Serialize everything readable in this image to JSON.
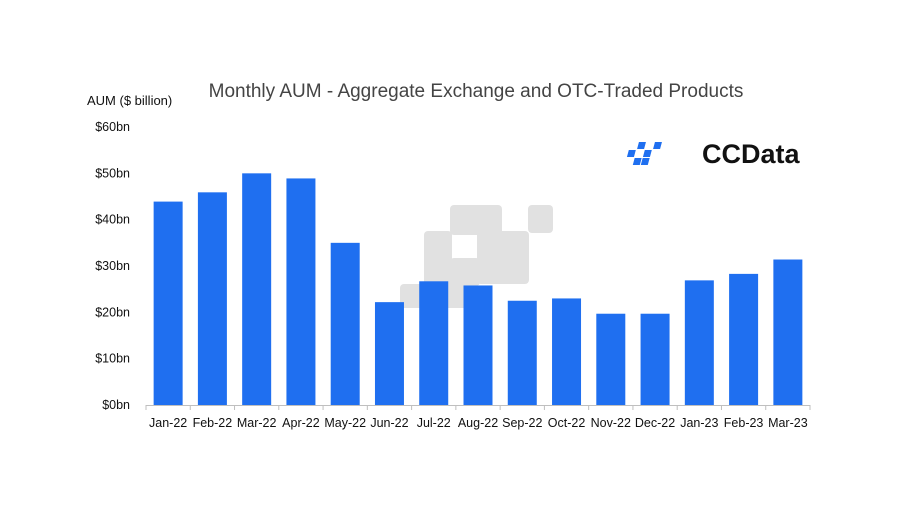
{
  "chart_data": {
    "type": "bar",
    "title": "Monthly AUM - Aggregate Exchange and OTC-Traded Products",
    "ylabel": "AUM ($ billion)",
    "xlabel": "",
    "categories": [
      "Jan-22",
      "Feb-22",
      "Mar-22",
      "Apr-22",
      "May-22",
      "Jun-22",
      "Jul-22",
      "Aug-22",
      "Sep-22",
      "Oct-22",
      "Nov-22",
      "Dec-22",
      "Jan-23",
      "Feb-23",
      "Mar-23"
    ],
    "values": [
      43.9,
      45.9,
      50.0,
      48.9,
      35.0,
      22.2,
      26.7,
      25.8,
      22.5,
      23.0,
      19.7,
      19.7,
      26.9,
      28.3,
      31.4
    ],
    "ylim": [
      0,
      60
    ],
    "yticks": [
      0,
      10,
      20,
      30,
      40,
      50,
      60
    ],
    "ytick_labels": [
      "$0bn",
      "$10bn",
      "$20bn",
      "$30bn",
      "$40bn",
      "$50bn",
      "$60bn"
    ],
    "grid": false,
    "bar_color": "#1f6ff0"
  },
  "logo": {
    "text": "CCData",
    "icon": "ccdata-logo-icon",
    "color": "#1f6ff0"
  },
  "watermark": {
    "icon": "ccdata-watermark-icon",
    "color": "#dcdcdc"
  }
}
